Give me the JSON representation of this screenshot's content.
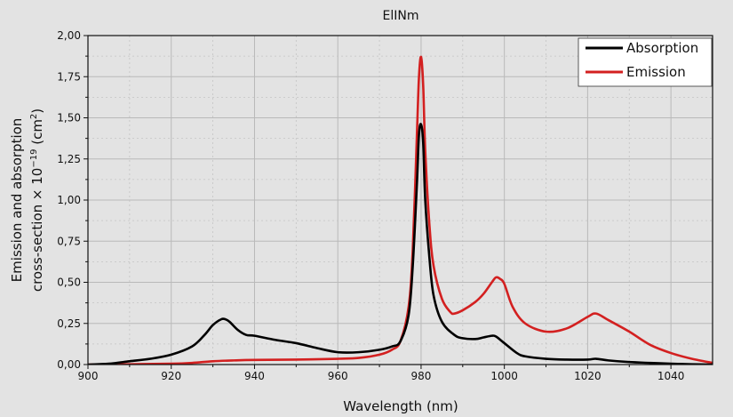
{
  "chart_data": {
    "type": "line",
    "title": "ElINm",
    "xlabel": "Wavelength (nm)",
    "ylabel_line1": "Emission and absorption",
    "ylabel_line2_prefix": "cross-section × 10",
    "ylabel_line2_exp": "−19",
    "ylabel_line2_suffix": " (cm",
    "ylabel_line2_sup": "2",
    "ylabel_line2_end": ")",
    "xlim": [
      900,
      1050
    ],
    "ylim": [
      0,
      2.0
    ],
    "xticks": [
      900,
      920,
      940,
      960,
      980,
      1000,
      1020,
      1040
    ],
    "yticks": [
      0,
      0.25,
      0.5,
      0.75,
      1.0,
      1.25,
      1.5,
      1.75,
      2.0
    ],
    "ytick_labels": [
      "0,00",
      "0,25",
      "0,50",
      "0,75",
      "1,00",
      "1,25",
      "1,50",
      "1,75",
      "2,00"
    ],
    "grid": true,
    "legend_position": "top-right",
    "series": [
      {
        "name": "Absorption",
        "color": "#000000",
        "x": [
          900,
          905,
          910,
          915,
          920,
          925,
          928,
          930,
          932,
          933,
          934,
          936,
          938,
          940,
          945,
          950,
          955,
          960,
          965,
          970,
          973,
          975,
          977,
          978,
          979,
          979.5,
          980,
          980.5,
          981,
          982,
          983,
          985,
          988,
          990,
          993,
          995,
          997,
          998,
          1000,
          1003,
          1005,
          1010,
          1015,
          1020,
          1022,
          1025,
          1030,
          1035,
          1040,
          1045,
          1050
        ],
        "y": [
          0,
          0.005,
          0.02,
          0.035,
          0.06,
          0.11,
          0.18,
          0.24,
          0.275,
          0.275,
          0.26,
          0.21,
          0.18,
          0.175,
          0.15,
          0.13,
          0.1,
          0.075,
          0.075,
          0.09,
          0.11,
          0.14,
          0.3,
          0.6,
          1.1,
          1.4,
          1.46,
          1.35,
          1.0,
          0.65,
          0.42,
          0.26,
          0.18,
          0.16,
          0.155,
          0.165,
          0.175,
          0.17,
          0.13,
          0.07,
          0.05,
          0.035,
          0.03,
          0.03,
          0.035,
          0.025,
          0.015,
          0.01,
          0.005,
          0.002,
          0
        ]
      },
      {
        "name": "Emission",
        "color": "#d32020",
        "x": [
          900,
          910,
          920,
          925,
          930,
          935,
          940,
          950,
          960,
          965,
          970,
          973,
          975,
          977,
          978,
          979,
          979.5,
          980,
          980.5,
          981,
          982,
          983,
          985,
          987,
          988,
          990,
          993,
          995,
          997,
          998,
          999,
          1000,
          1002,
          1005,
          1010,
          1015,
          1020,
          1022,
          1025,
          1030,
          1035,
          1040,
          1045,
          1050
        ],
        "y": [
          0,
          0.002,
          0.005,
          0.01,
          0.02,
          0.025,
          0.028,
          0.03,
          0.035,
          0.04,
          0.06,
          0.09,
          0.14,
          0.35,
          0.7,
          1.4,
          1.75,
          1.87,
          1.7,
          1.3,
          0.85,
          0.6,
          0.4,
          0.32,
          0.31,
          0.33,
          0.38,
          0.43,
          0.5,
          0.53,
          0.52,
          0.49,
          0.35,
          0.25,
          0.2,
          0.22,
          0.29,
          0.31,
          0.27,
          0.2,
          0.12,
          0.07,
          0.035,
          0.01
        ]
      }
    ]
  }
}
